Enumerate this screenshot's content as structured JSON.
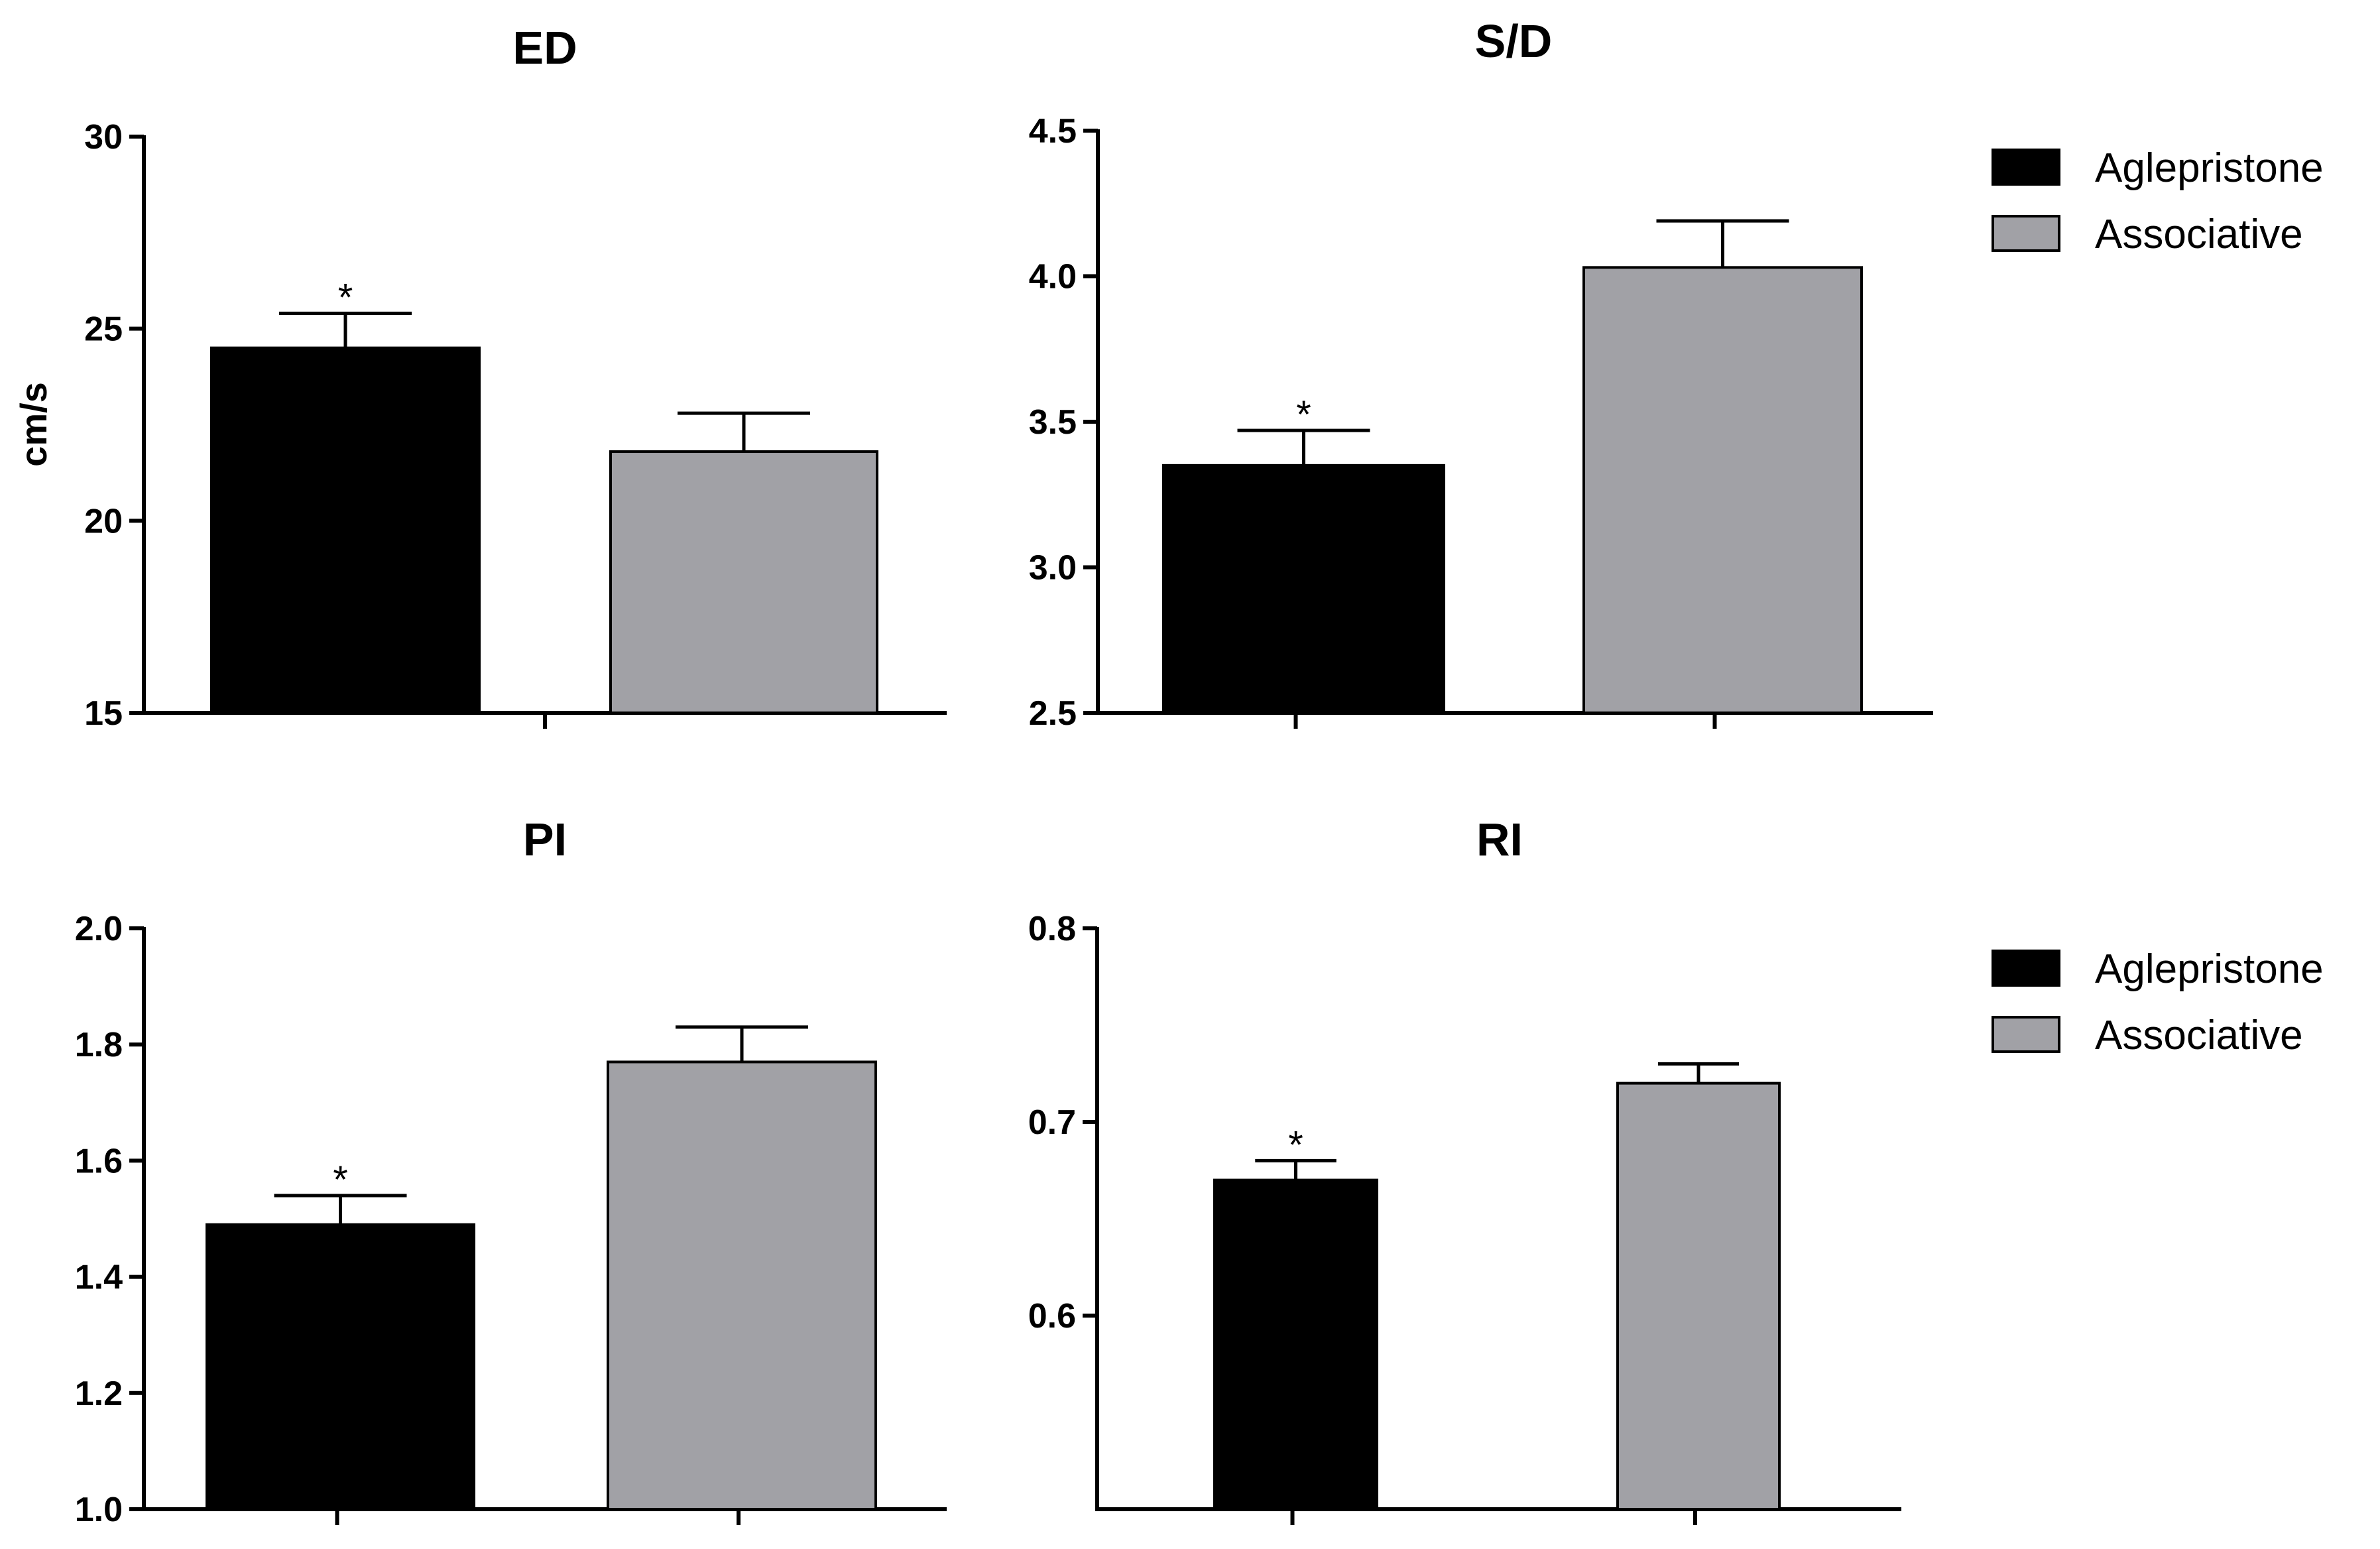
{
  "colors": {
    "Aglepristone": "#000000",
    "Associative": "#a1a1a6"
  },
  "legends": [
    {
      "entries": [
        {
          "label": "Aglepristone",
          "color": "#000000"
        },
        {
          "label": "Associative",
          "color": "#a1a1a6"
        }
      ]
    },
    {
      "entries": [
        {
          "label": "Aglepristone",
          "color": "#000000"
        },
        {
          "label": "Associative",
          "color": "#a1a1a6"
        }
      ]
    }
  ],
  "chart_data": [
    {
      "type": "bar",
      "title": "ED",
      "ylabel": "cm/s",
      "xlabel": "",
      "ylim": [
        15,
        30
      ],
      "yticks": [
        15,
        20,
        25,
        30
      ],
      "tick_labels": [
        "15",
        "20",
        "25",
        "30"
      ],
      "series": [
        {
          "name": "Aglepristone",
          "value": 24.5,
          "error": 0.9,
          "significant": true
        },
        {
          "name": "Associative",
          "value": 21.8,
          "error": 1.0,
          "significant": false
        }
      ]
    },
    {
      "type": "bar",
      "title": "S/D",
      "ylabel": "",
      "xlabel": "",
      "ylim": [
        2.5,
        4.5
      ],
      "yticks": [
        2.5,
        3.0,
        3.5,
        4.0,
        4.5
      ],
      "tick_labels": [
        "2.5",
        "3.0",
        "3.5",
        "4.0",
        "4.5"
      ],
      "series": [
        {
          "name": "Aglepristone",
          "value": 3.35,
          "error": 0.12,
          "significant": true
        },
        {
          "name": "Associative",
          "value": 4.03,
          "error": 0.16,
          "significant": false
        }
      ]
    },
    {
      "type": "bar",
      "title": "PI",
      "ylabel": "",
      "xlabel": "",
      "ylim": [
        1.0,
        2.0
      ],
      "yticks": [
        1.0,
        1.2,
        1.4,
        1.6,
        1.8,
        2.0
      ],
      "tick_labels": [
        "1.0",
        "1.2",
        "1.4",
        "1.6",
        "1.8",
        "2.0"
      ],
      "series": [
        {
          "name": "Aglepristone",
          "value": 1.49,
          "error": 0.05,
          "significant": true
        },
        {
          "name": "Associative",
          "value": 1.77,
          "error": 0.06,
          "significant": false
        }
      ]
    },
    {
      "type": "bar",
      "title": "RI",
      "ylabel": "",
      "xlabel": "",
      "ylim": [
        0.5,
        0.8
      ],
      "yticks": [
        0.6,
        0.7,
        0.8
      ],
      "tick_labels": [
        "0.6",
        "0.7",
        "0.8"
      ],
      "series": [
        {
          "name": "Aglepristone",
          "value": 0.67,
          "error": 0.01,
          "significant": true
        },
        {
          "name": "Associative",
          "value": 0.72,
          "error": 0.01,
          "significant": false
        }
      ]
    }
  ]
}
